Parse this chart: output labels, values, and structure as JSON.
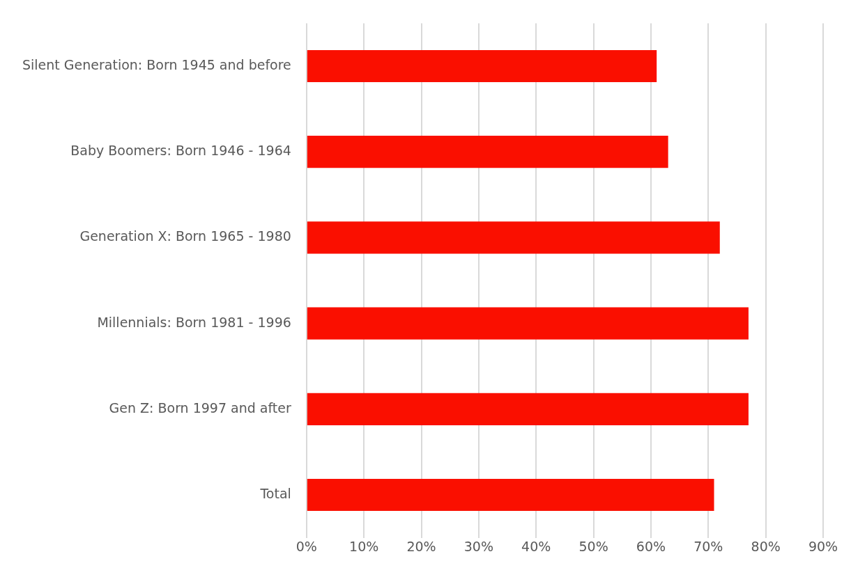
{
  "chart_data": {
    "type": "bar",
    "orientation": "horizontal",
    "categories": [
      "Silent Generation: Born 1945 and before",
      "Baby Boomers: Born 1946 - 1964",
      "Generation X: Born 1965 - 1980",
      "Millennials: Born 1981 - 1996",
      "Gen Z: Born 1997 and after",
      "Total"
    ],
    "values": [
      61,
      63,
      72,
      77,
      77,
      71
    ],
    "color": "#fa0f00",
    "xlim": [
      0,
      90
    ],
    "xticks": [
      {
        "value": 0,
        "label": "0%"
      },
      {
        "value": 10,
        "label": "10%"
      },
      {
        "value": 20,
        "label": "20%"
      },
      {
        "value": 30,
        "label": "30%"
      },
      {
        "value": 40,
        "label": "40%"
      },
      {
        "value": 50,
        "label": "50%"
      },
      {
        "value": 60,
        "label": "60%"
      },
      {
        "value": 70,
        "label": "70%"
      },
      {
        "value": 80,
        "label": "80%"
      },
      {
        "value": 90,
        "label": "90%"
      }
    ],
    "grid": "x",
    "legend": false
  }
}
